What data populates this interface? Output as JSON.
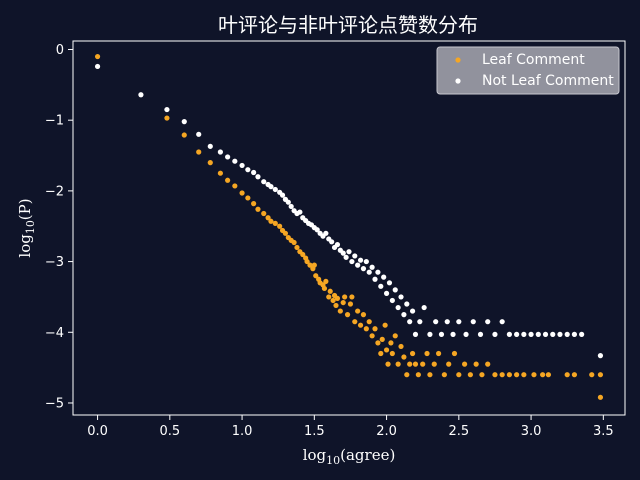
{
  "chart_data": {
    "type": "scatter",
    "title": "叶评论与非叶评论点赞数分布",
    "xlabel": "log10(agree)",
    "ylabel": "log10(P)",
    "xlim": [
      -0.17,
      3.65
    ],
    "ylim": [
      -5.17,
      0.12
    ],
    "x_ticks": [
      0.0,
      0.5,
      1.0,
      1.5,
      2.0,
      2.5,
      3.0,
      3.5
    ],
    "x_tick_labels": [
      "0.0",
      "0.5",
      "1.0",
      "1.5",
      "2.0",
      "2.5",
      "3.0",
      "3.5"
    ],
    "y_ticks": [
      0,
      -1,
      -2,
      -3,
      -4,
      -5
    ],
    "y_tick_labels": [
      "0",
      "−1",
      "−2",
      "−3",
      "−4",
      "−5"
    ],
    "legend_position": "top-right",
    "grid": false,
    "colors": {
      "background": "#0f1429",
      "axes": "#ffffff",
      "leaf": "#f5a623",
      "not_leaf": "#ffffff",
      "legend_bg": "#a8a8b2"
    },
    "series": [
      {
        "name": "Leaf Comment",
        "color": "#f5a623",
        "points": [
          [
            0.0,
            -0.1
          ],
          [
            0.48,
            -0.97
          ],
          [
            0.6,
            -1.21
          ],
          [
            0.7,
            -1.45
          ],
          [
            0.78,
            -1.6
          ],
          [
            0.85,
            -1.75
          ],
          [
            0.9,
            -1.85
          ],
          [
            0.95,
            -1.93
          ],
          [
            1.0,
            -2.03
          ],
          [
            1.04,
            -2.1
          ],
          [
            1.08,
            -2.18
          ],
          [
            1.11,
            -2.26
          ],
          [
            1.15,
            -2.32
          ],
          [
            1.18,
            -2.38
          ],
          [
            1.2,
            -2.43
          ],
          [
            1.23,
            -2.46
          ],
          [
            1.26,
            -2.5
          ],
          [
            1.28,
            -2.56
          ],
          [
            1.3,
            -2.6
          ],
          [
            1.32,
            -2.66
          ],
          [
            1.34,
            -2.7
          ],
          [
            1.36,
            -2.73
          ],
          [
            1.38,
            -2.8
          ],
          [
            1.4,
            -2.86
          ],
          [
            1.42,
            -2.9
          ],
          [
            1.44,
            -2.95
          ],
          [
            1.45,
            -3.0
          ],
          [
            1.47,
            -3.05
          ],
          [
            1.49,
            -3.1
          ],
          [
            1.5,
            -3.05
          ],
          [
            1.51,
            -3.2
          ],
          [
            1.53,
            -3.25
          ],
          [
            1.54,
            -3.3
          ],
          [
            1.56,
            -3.33
          ],
          [
            1.57,
            -3.38
          ],
          [
            1.58,
            -3.28
          ],
          [
            1.6,
            -3.5
          ],
          [
            1.61,
            -3.42
          ],
          [
            1.63,
            -3.55
          ],
          [
            1.64,
            -3.48
          ],
          [
            1.65,
            -3.62
          ],
          [
            1.66,
            -3.52
          ],
          [
            1.68,
            -3.7
          ],
          [
            1.7,
            -3.58
          ],
          [
            1.71,
            -3.5
          ],
          [
            1.73,
            -3.75
          ],
          [
            1.75,
            -3.6
          ],
          [
            1.76,
            -3.5
          ],
          [
            1.78,
            -3.85
          ],
          [
            1.8,
            -3.7
          ],
          [
            1.82,
            -3.9
          ],
          [
            1.84,
            -3.75
          ],
          [
            1.86,
            -3.95
          ],
          [
            1.88,
            -3.85
          ],
          [
            1.9,
            -4.05
          ],
          [
            1.92,
            -3.95
          ],
          [
            1.94,
            -4.15
          ],
          [
            1.96,
            -4.3
          ],
          [
            1.97,
            -4.1
          ],
          [
            1.99,
            -3.9
          ],
          [
            2.0,
            -4.25
          ],
          [
            2.01,
            -4.45
          ],
          [
            2.03,
            -4.15
          ],
          [
            2.04,
            -4.3
          ],
          [
            2.06,
            -4.05
          ],
          [
            2.08,
            -4.45
          ],
          [
            2.1,
            -4.2
          ],
          [
            2.12,
            -4.35
          ],
          [
            2.14,
            -4.6
          ],
          [
            2.16,
            -4.45
          ],
          [
            2.18,
            -4.3
          ],
          [
            2.2,
            -4.45
          ],
          [
            2.22,
            -4.6
          ],
          [
            2.25,
            -4.45
          ],
          [
            2.28,
            -4.3
          ],
          [
            2.3,
            -4.6
          ],
          [
            2.33,
            -4.45
          ],
          [
            2.36,
            -4.3
          ],
          [
            2.4,
            -4.6
          ],
          [
            2.43,
            -4.45
          ],
          [
            2.47,
            -4.3
          ],
          [
            2.5,
            -4.6
          ],
          [
            2.54,
            -4.45
          ],
          [
            2.58,
            -4.6
          ],
          [
            2.62,
            -4.45
          ],
          [
            2.66,
            -4.6
          ],
          [
            2.7,
            -4.45
          ],
          [
            2.75,
            -4.6
          ],
          [
            2.8,
            -4.6
          ],
          [
            2.85,
            -4.6
          ],
          [
            2.9,
            -4.6
          ],
          [
            2.95,
            -4.6
          ],
          [
            3.02,
            -4.6
          ],
          [
            3.08,
            -4.6
          ],
          [
            3.12,
            -4.6
          ],
          [
            3.25,
            -4.6
          ],
          [
            3.3,
            -4.6
          ],
          [
            3.42,
            -4.6
          ],
          [
            3.48,
            -4.6
          ],
          [
            3.48,
            -4.92
          ]
        ]
      },
      {
        "name": "Not Leaf Comment",
        "color": "#ffffff",
        "points": [
          [
            0.0,
            -0.24
          ],
          [
            0.3,
            -0.64
          ],
          [
            0.48,
            -0.85
          ],
          [
            0.6,
            -1.02
          ],
          [
            0.7,
            -1.2
          ],
          [
            0.78,
            -1.37
          ],
          [
            0.85,
            -1.45
          ],
          [
            0.9,
            -1.52
          ],
          [
            0.95,
            -1.58
          ],
          [
            1.0,
            -1.64
          ],
          [
            1.04,
            -1.7
          ],
          [
            1.08,
            -1.74
          ],
          [
            1.11,
            -1.8
          ],
          [
            1.15,
            -1.87
          ],
          [
            1.18,
            -1.91
          ],
          [
            1.2,
            -1.94
          ],
          [
            1.23,
            -1.98
          ],
          [
            1.26,
            -2.02
          ],
          [
            1.28,
            -2.06
          ],
          [
            1.3,
            -2.12
          ],
          [
            1.32,
            -2.16
          ],
          [
            1.34,
            -2.22
          ],
          [
            1.36,
            -2.28
          ],
          [
            1.38,
            -2.32
          ],
          [
            1.4,
            -2.3
          ],
          [
            1.42,
            -2.38
          ],
          [
            1.44,
            -2.42
          ],
          [
            1.46,
            -2.46
          ],
          [
            1.48,
            -2.48
          ],
          [
            1.5,
            -2.52
          ],
          [
            1.52,
            -2.55
          ],
          [
            1.54,
            -2.6
          ],
          [
            1.56,
            -2.64
          ],
          [
            1.58,
            -2.6
          ],
          [
            1.6,
            -2.68
          ],
          [
            1.62,
            -2.72
          ],
          [
            1.64,
            -2.8
          ],
          [
            1.66,
            -2.76
          ],
          [
            1.68,
            -2.84
          ],
          [
            1.7,
            -2.88
          ],
          [
            1.72,
            -2.94
          ],
          [
            1.74,
            -2.86
          ],
          [
            1.76,
            -3.0
          ],
          [
            1.78,
            -2.92
          ],
          [
            1.8,
            -3.05
          ],
          [
            1.82,
            -2.98
          ],
          [
            1.84,
            -3.1
          ],
          [
            1.86,
            -3.0
          ],
          [
            1.88,
            -3.15
          ],
          [
            1.9,
            -3.08
          ],
          [
            1.92,
            -3.25
          ],
          [
            1.94,
            -3.15
          ],
          [
            1.96,
            -3.35
          ],
          [
            1.98,
            -3.22
          ],
          [
            2.0,
            -3.45
          ],
          [
            2.02,
            -3.3
          ],
          [
            2.04,
            -3.55
          ],
          [
            2.06,
            -3.4
          ],
          [
            2.08,
            -3.65
          ],
          [
            2.1,
            -3.5
          ],
          [
            2.12,
            -3.75
          ],
          [
            2.14,
            -3.6
          ],
          [
            2.16,
            -3.85
          ],
          [
            2.18,
            -3.7
          ],
          [
            2.2,
            -4.03
          ],
          [
            2.23,
            -3.85
          ],
          [
            2.26,
            -3.65
          ],
          [
            2.3,
            -4.03
          ],
          [
            2.34,
            -3.85
          ],
          [
            2.38,
            -4.03
          ],
          [
            2.42,
            -3.85
          ],
          [
            2.46,
            -4.03
          ],
          [
            2.5,
            -3.85
          ],
          [
            2.55,
            -4.03
          ],
          [
            2.6,
            -3.85
          ],
          [
            2.65,
            -4.03
          ],
          [
            2.7,
            -3.85
          ],
          [
            2.75,
            -4.03
          ],
          [
            2.8,
            -3.85
          ],
          [
            2.85,
            -4.03
          ],
          [
            2.9,
            -4.03
          ],
          [
            2.95,
            -4.03
          ],
          [
            3.0,
            -4.03
          ],
          [
            3.05,
            -4.03
          ],
          [
            3.1,
            -4.03
          ],
          [
            3.15,
            -4.03
          ],
          [
            3.2,
            -4.03
          ],
          [
            3.25,
            -4.03
          ],
          [
            3.3,
            -4.03
          ],
          [
            3.35,
            -4.03
          ],
          [
            3.48,
            -4.33
          ]
        ]
      }
    ]
  }
}
